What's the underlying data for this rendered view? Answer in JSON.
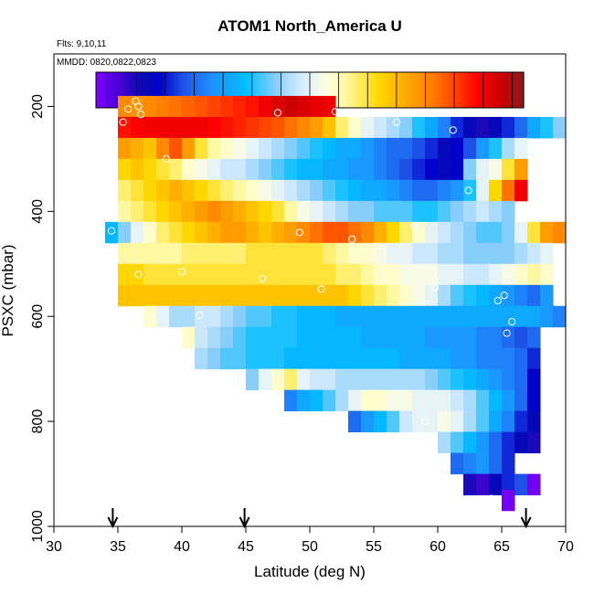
{
  "chart_data": {
    "type": "heatmap",
    "title": "ATOM1 North_America U",
    "flights_label": "Flts: 9,10,11",
    "dates_label": "MMDD: 0820,0822,0823",
    "xlabel": "Latitude (deg N)",
    "ylabel": "PSXC (mbar)",
    "xlim": [
      30,
      70
    ],
    "ylim": [
      1000,
      100
    ],
    "x_ticks": [
      30,
      35,
      40,
      45,
      50,
      55,
      60,
      65,
      70
    ],
    "y_ticks": [
      200,
      400,
      600,
      800,
      1000
    ],
    "colorbar": {
      "range": [
        -8.5,
        28.5
      ],
      "ticks": [
        -5,
        0,
        5,
        10,
        15,
        20,
        25
      ],
      "colors": [
        "#7F00FF",
        "#4A00D8",
        "#0A0AB0",
        "#0000CD",
        "#1E50E6",
        "#1E90FF",
        "#00BFFF",
        "#87CEFA",
        "#DDEFFF",
        "#FFFFE0",
        "#FFF68F",
        "#FFD700",
        "#FFA500",
        "#FF7F00",
        "#FF4500",
        "#FF0000",
        "#CC0000",
        "#8B1A1A"
      ],
      "color_stops": [
        -8.5,
        -6.5,
        -4.5,
        -3,
        -1,
        1.5,
        4.5,
        7,
        9.5,
        11.5,
        13.5,
        16,
        18.5,
        20.5,
        22.5,
        24.5,
        26.5,
        28.5
      ]
    },
    "cell_width_deg": 1,
    "cell_height_mbar": 40,
    "rows": [
      {
        "p": 200,
        "lat0": 35,
        "values": [
          20,
          19.5,
          20,
          20.5,
          21,
          21.5,
          22,
          22.5,
          23,
          23.5,
          24,
          25,
          26,
          26.5,
          26,
          25.5,
          25
        ]
      },
      {
        "p": 240,
        "lat0": 35,
        "values": [
          24,
          24.5,
          25,
          25,
          25,
          25,
          25,
          24.5,
          24,
          23.5,
          23,
          22.5,
          22,
          21,
          20,
          19,
          17,
          14,
          12,
          10,
          9,
          8,
          7,
          5,
          3,
          1,
          -2,
          -4,
          -5,
          -4,
          -2,
          0,
          3,
          5,
          7
        ]
      },
      {
        "p": 280,
        "lat0": 35,
        "values": [
          19,
          18,
          17,
          20,
          22,
          19,
          15,
          13,
          12,
          11,
          10,
          9,
          8,
          7,
          6,
          5,
          4,
          3,
          3,
          2,
          1,
          0,
          0,
          -1,
          -2,
          -4,
          -3,
          -1,
          2,
          5,
          8,
          10
        ]
      },
      {
        "p": 320,
        "lat0": 35,
        "values": [
          16,
          17,
          16,
          15,
          14,
          12,
          11,
          10,
          9,
          9,
          8,
          7,
          6,
          5,
          4,
          4,
          3,
          3,
          2,
          2,
          1,
          0,
          -1,
          -2,
          -3,
          -4,
          -3,
          7,
          10,
          11,
          15,
          19
        ]
      },
      {
        "p": 360,
        "lat0": 35,
        "values": [
          14,
          15,
          16,
          17,
          18,
          17,
          16,
          15,
          14,
          13,
          12,
          11,
          10,
          9,
          8,
          7,
          6,
          5,
          4,
          3,
          3,
          2,
          1,
          0,
          0,
          1,
          2,
          5,
          10,
          16,
          21,
          25
        ]
      },
      {
        "p": 400,
        "lat0": 35,
        "values": [
          13,
          14,
          15,
          16,
          17,
          18,
          19,
          20,
          19,
          18,
          17,
          16,
          15,
          13,
          11,
          10,
          9,
          8,
          7,
          7,
          6,
          6,
          6,
          5,
          5,
          6,
          7,
          8,
          9,
          8,
          7
        ]
      },
      {
        "p": 440,
        "lat0": 34,
        "values": [
          4,
          7,
          10,
          12,
          14,
          15,
          16,
          17,
          18,
          19,
          19,
          18,
          17,
          18,
          19,
          20,
          21,
          22,
          22,
          21,
          20,
          18,
          16,
          14,
          12,
          10,
          9,
          8,
          7,
          6,
          6,
          7,
          10,
          15,
          19,
          20
        ]
      },
      {
        "p": 480,
        "lat0": 35,
        "values": [
          13,
          13,
          13,
          13,
          13,
          14,
          14,
          14,
          14,
          14,
          15,
          15,
          15,
          15,
          15,
          15,
          14,
          13,
          12,
          12,
          11,
          10,
          10,
          9,
          9,
          8,
          8,
          7,
          7,
          7,
          7,
          8,
          9,
          10
        ]
      },
      {
        "p": 520,
        "lat0": 35,
        "values": [
          16,
          16,
          15,
          15,
          15,
          15,
          15,
          15,
          15,
          15,
          15,
          15,
          15,
          15,
          15,
          15,
          15,
          14,
          14,
          13,
          12,
          12,
          11,
          11,
          11,
          10,
          10,
          9,
          9,
          10,
          11,
          12,
          13,
          12
        ]
      },
      {
        "p": 560,
        "lat0": 35,
        "values": [
          17,
          17,
          17,
          17,
          17,
          17,
          17,
          17,
          17,
          17,
          17,
          17,
          17,
          17,
          17,
          17,
          17,
          17,
          16,
          15,
          14,
          13,
          12,
          11,
          10,
          8,
          6,
          5,
          4,
          3,
          2,
          1,
          0,
          2
        ]
      },
      {
        "p": 600,
        "lat0": 37,
        "values": [
          12,
          10,
          8,
          8,
          9,
          9,
          8,
          7,
          6,
          6,
          5,
          5,
          4,
          4,
          4,
          3,
          3,
          3,
          3,
          3,
          3,
          3,
          3,
          3,
          3,
          3,
          3,
          3,
          3,
          3,
          3,
          2,
          1
        ]
      },
      {
        "p": 640,
        "lat0": 40,
        "values": [
          12,
          9,
          8,
          7,
          6,
          5,
          5,
          5,
          5,
          4,
          4,
          4,
          4,
          4,
          3,
          3,
          3,
          3,
          3,
          2,
          2,
          2,
          2,
          1,
          1,
          0,
          -1,
          0
        ]
      },
      {
        "p": 680,
        "lat0": 41,
        "values": [
          8,
          7,
          6,
          6,
          5,
          5,
          5,
          4,
          4,
          4,
          4,
          4,
          4,
          4,
          4,
          4,
          3,
          3,
          3,
          3,
          2,
          2,
          1,
          1,
          1,
          0,
          -2
        ]
      },
      {
        "p": 720,
        "lat0": 45,
        "values": [
          7,
          10,
          12,
          14,
          10,
          9,
          9,
          8,
          8,
          8,
          8,
          8,
          8,
          8,
          7,
          6,
          5,
          4,
          3,
          2,
          1,
          0,
          -3
        ]
      },
      {
        "p": 760,
        "lat0": 48,
        "values": [
          1,
          3,
          4,
          6,
          8,
          10,
          12,
          12,
          11,
          11,
          10,
          10,
          10,
          9,
          8,
          6,
          4,
          2,
          0,
          -3
        ]
      },
      {
        "p": 800,
        "lat0": 53,
        "values": [
          0,
          2,
          4,
          6,
          9,
          10,
          10,
          11,
          10,
          8,
          6,
          3,
          1,
          -2,
          -4
        ]
      },
      {
        "p": 840,
        "lat0": 60,
        "values": [
          8,
          6,
          4,
          2,
          0,
          -2,
          -4,
          -5
        ]
      },
      {
        "p": 880,
        "lat0": 61,
        "values": [
          0,
          1,
          2,
          0,
          -2
        ]
      },
      {
        "p": 920,
        "lat0": 62,
        "values": [
          -5,
          -6,
          -4,
          -2,
          -1,
          -8
        ]
      },
      {
        "p": 950,
        "lat0": 65,
        "values": [
          -8
        ]
      }
    ],
    "observation_points": [
      [
        35.4,
        230
      ],
      [
        35.8,
        205
      ],
      [
        36.4,
        190
      ],
      [
        36.6,
        200
      ],
      [
        36.8,
        215
      ],
      [
        38.8,
        300
      ],
      [
        47.5,
        212
      ],
      [
        52.0,
        210
      ],
      [
        56.8,
        230
      ],
      [
        61.2,
        245
      ],
      [
        62.4,
        360
      ],
      [
        65.2,
        560
      ],
      [
        65.8,
        610
      ],
      [
        64.7,
        570
      ],
      [
        65.4,
        632
      ],
      [
        34.5,
        437
      ],
      [
        36.6,
        520
      ],
      [
        40.0,
        515
      ],
      [
        41.4,
        598
      ],
      [
        46.3,
        528
      ],
      [
        49.2,
        440
      ],
      [
        50.9,
        548
      ],
      [
        53.3,
        453
      ],
      [
        54.9,
        485
      ],
      [
        58.2,
        427
      ],
      [
        59.8,
        545
      ],
      [
        37.7,
        603
      ],
      [
        59.0,
        800
      ],
      [
        64.2,
        947
      ]
    ],
    "markers_latitude": [
      34.6,
      44.9,
      66.9
    ]
  }
}
